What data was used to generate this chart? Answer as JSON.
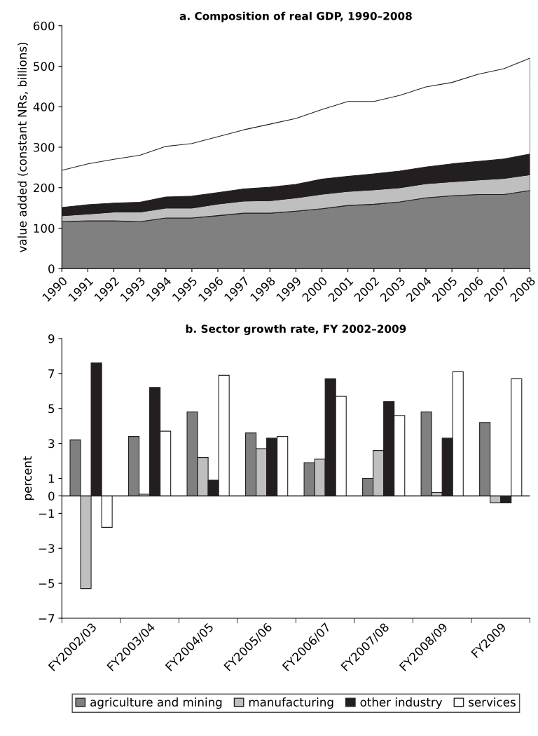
{
  "chart_data": [
    {
      "type": "area",
      "title": "a. Composition of real GDP, 1990–2008",
      "ylabel": "value added (constant NRs, billions)",
      "stacked": true,
      "x": [
        1990,
        1991,
        1992,
        1993,
        1994,
        1995,
        1996,
        1997,
        1998,
        1999,
        2000,
        2001,
        2002,
        2003,
        2004,
        2005,
        2006,
        2007,
        2008
      ],
      "xlim": [
        1990,
        2008
      ],
      "xticks": [
        1990,
        1991,
        1992,
        1993,
        1994,
        1995,
        1996,
        1997,
        1998,
        1999,
        2000,
        2001,
        2002,
        2003,
        2004,
        2005,
        2006,
        2007,
        2008
      ],
      "ylim": [
        0,
        600
      ],
      "yticks": [
        0,
        100,
        200,
        300,
        400,
        500,
        600
      ],
      "grid": false,
      "legend": false,
      "series": [
        {
          "color": "#808080",
          "values": [
            116,
            118,
            118,
            116,
            125,
            125,
            131,
            137,
            137,
            142,
            148,
            156,
            159,
            165,
            175,
            180,
            183,
            183,
            193
          ]
        },
        {
          "color": "#bfbfbf",
          "values": [
            15,
            17,
            22,
            24,
            25,
            25,
            29,
            30,
            31,
            33,
            36,
            35,
            36,
            35,
            35,
            35,
            36,
            40,
            39
          ]
        },
        {
          "color": "#231f20",
          "values": [
            20,
            23,
            22,
            24,
            27,
            29,
            28,
            30,
            33,
            33,
            37,
            37,
            39,
            41,
            41,
            44,
            46,
            48,
            51
          ]
        },
        {
          "color": "#ffffff",
          "values": [
            92,
            101,
            108,
            116,
            125,
            130,
            138,
            146,
            156,
            163,
            172,
            185,
            179,
            187,
            198,
            201,
            215,
            223,
            237
          ]
        }
      ]
    },
    {
      "type": "bar",
      "title": "b. Sector growth rate, FY 2002–2009",
      "ylabel": "percent",
      "categories": [
        "FY2002/03",
        "FY2003/04",
        "FY2004/05",
        "FY2005/06",
        "FY2006/07",
        "FY2007/08",
        "FY2008/09",
        "FY2009"
      ],
      "ylim": [
        -7,
        9
      ],
      "yticks": [
        {
          "value": -7,
          "label": "−7"
        },
        {
          "value": -5,
          "label": "−5"
        },
        {
          "value": -3,
          "label": "−3"
        },
        {
          "value": -1,
          "label": "−1"
        },
        0,
        1,
        3,
        5,
        7,
        9
      ],
      "grid": false,
      "legend": "bottom",
      "ref_lines": [
        {
          "axis": "y",
          "value": 0,
          "color": "#231f20"
        }
      ],
      "series": [
        {
          "name": "agriculture and mining",
          "color": "#808080",
          "values": [
            3.2,
            3.4,
            4.8,
            3.6,
            1.9,
            1.0,
            4.8,
            4.2
          ]
        },
        {
          "name": "manufacturing",
          "color": "#bfbfbf",
          "values": [
            -5.3,
            0.1,
            2.2,
            2.7,
            2.1,
            2.6,
            0.2,
            -0.4
          ]
        },
        {
          "name": "other industry",
          "color": "#231f20",
          "values": [
            7.6,
            6.2,
            0.9,
            3.3,
            6.7,
            5.4,
            3.3,
            -0.4
          ]
        },
        {
          "name": "services",
          "color": "#ffffff",
          "values": [
            -1.8,
            3.7,
            6.9,
            3.4,
            5.7,
            4.6,
            7.1,
            6.7
          ]
        }
      ]
    }
  ]
}
